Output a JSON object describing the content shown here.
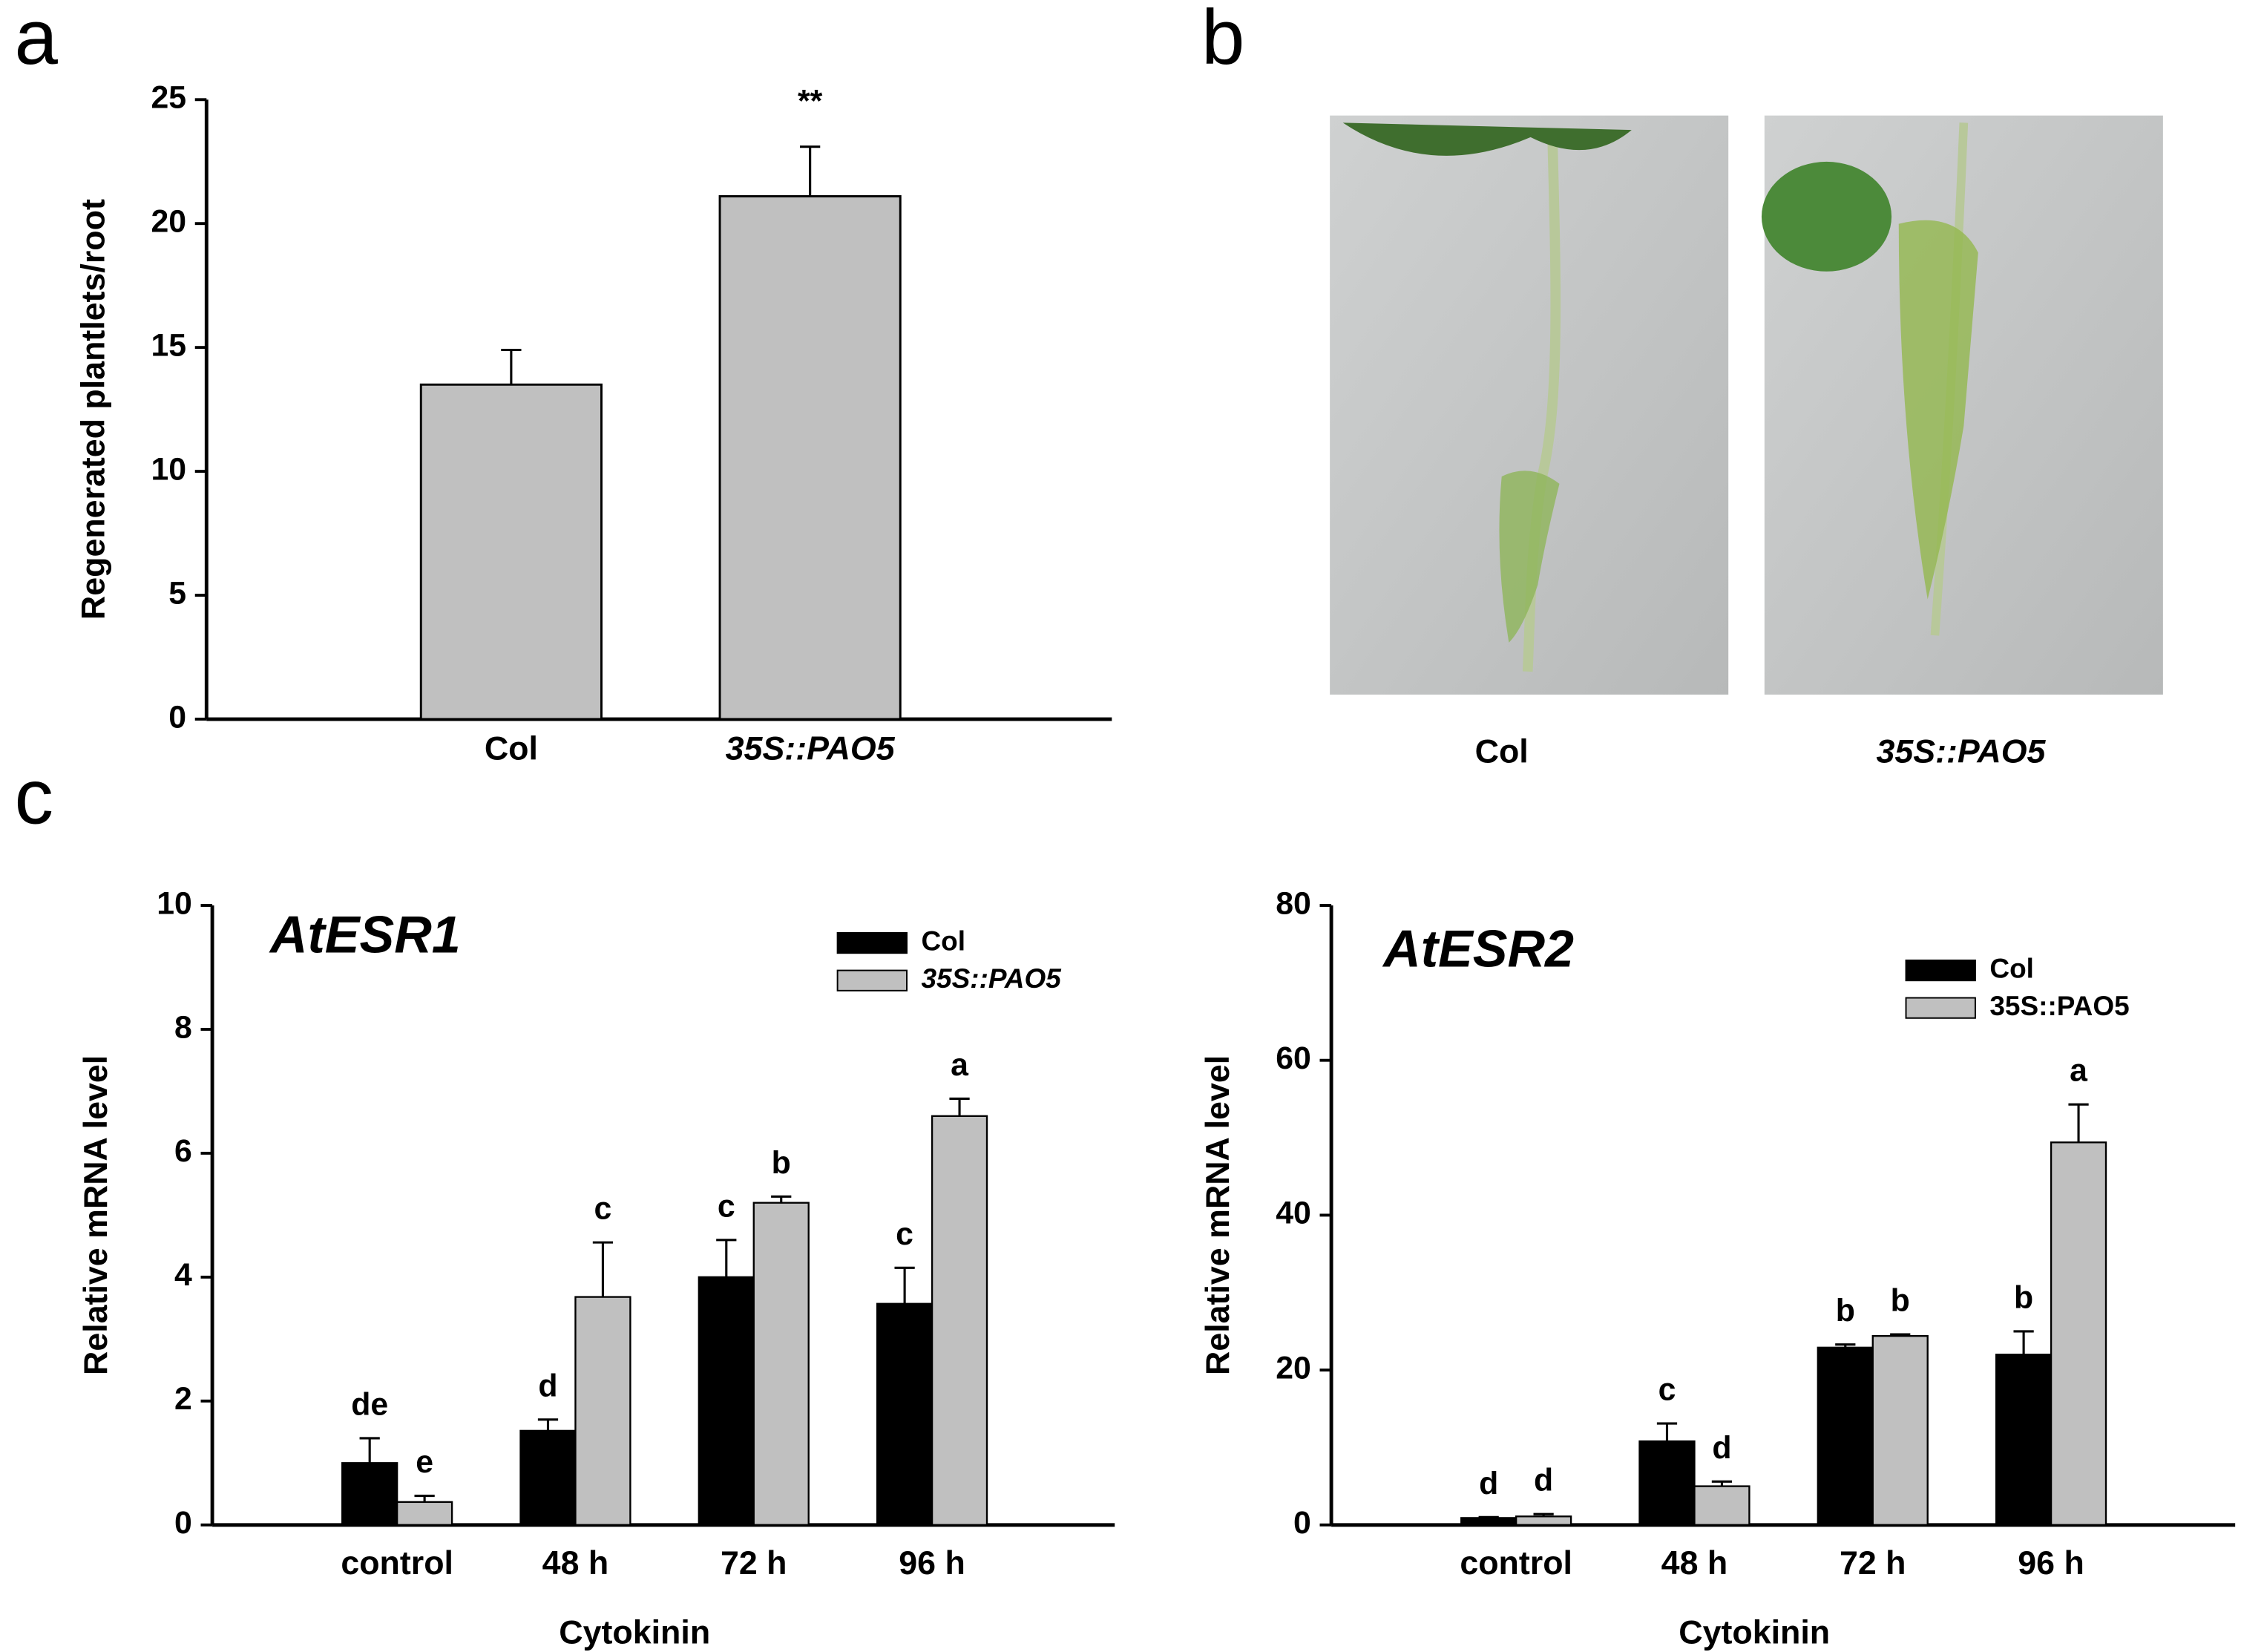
{
  "panel_labels": [
    "a",
    "b",
    "c"
  ],
  "photo_panel": {
    "captions": [
      "Col",
      "35S::PAO5"
    ]
  },
  "chart_data": [
    {
      "type": "bar",
      "y_label": "Regenerated plantlets/root",
      "categories": [
        "Col",
        "35S::PAO5"
      ],
      "values": [
        13.5,
        21.1
      ],
      "errors": [
        1.4,
        2.0
      ],
      "significance": [
        null,
        "**"
      ],
      "color": "#c0c0c0",
      "ylim": [
        0,
        25
      ],
      "yticks": [
        0,
        5,
        10,
        15,
        20,
        25
      ]
    },
    {
      "type": "grouped_bar",
      "title": "AtESR1",
      "x_label": "Cytokinin",
      "y_label": "Relative mRNA level",
      "categories": [
        "control",
        "48 h",
        "72 h",
        "96 h"
      ],
      "series": [
        {
          "name": "Col",
          "color": "#000000",
          "values": [
            1.0,
            1.52,
            4.0,
            3.57
          ],
          "errors": [
            0.4,
            0.18,
            0.6,
            0.58
          ],
          "letters": [
            "de",
            "d",
            "c",
            "c"
          ]
        },
        {
          "name": "35S::PAO5",
          "color": "#c0c0c0",
          "values": [
            0.37,
            3.68,
            5.2,
            6.6
          ],
          "errors": [
            0.1,
            0.88,
            0.1,
            0.28
          ],
          "letters": [
            "e",
            "c",
            "b",
            "a"
          ]
        }
      ],
      "ylim": [
        0,
        10
      ],
      "yticks": [
        0,
        2,
        4,
        6,
        8,
        10
      ]
    },
    {
      "type": "grouped_bar",
      "title": "AtESR2",
      "x_label": "Cytokinin",
      "y_label": "Relative mRNA level",
      "categories": [
        "control",
        "48 h",
        "72 h",
        "96 h"
      ],
      "series": [
        {
          "name": "Col",
          "color": "#000000",
          "values": [
            0.9,
            10.8,
            22.9,
            22.0
          ],
          "errors": [
            0.1,
            2.3,
            0.4,
            3.0
          ],
          "letters": [
            "d",
            "c",
            "b",
            "b"
          ]
        },
        {
          "name": "35S::PAO5",
          "color": "#c0c0c0",
          "values": [
            1.1,
            5.0,
            24.4,
            49.4
          ],
          "errors": [
            0.3,
            0.6,
            0.2,
            4.9
          ],
          "letters": [
            "d",
            "d",
            "b",
            "a"
          ]
        }
      ],
      "ylim": [
        0,
        80
      ],
      "yticks": [
        0,
        20,
        40,
        60,
        80
      ]
    }
  ]
}
